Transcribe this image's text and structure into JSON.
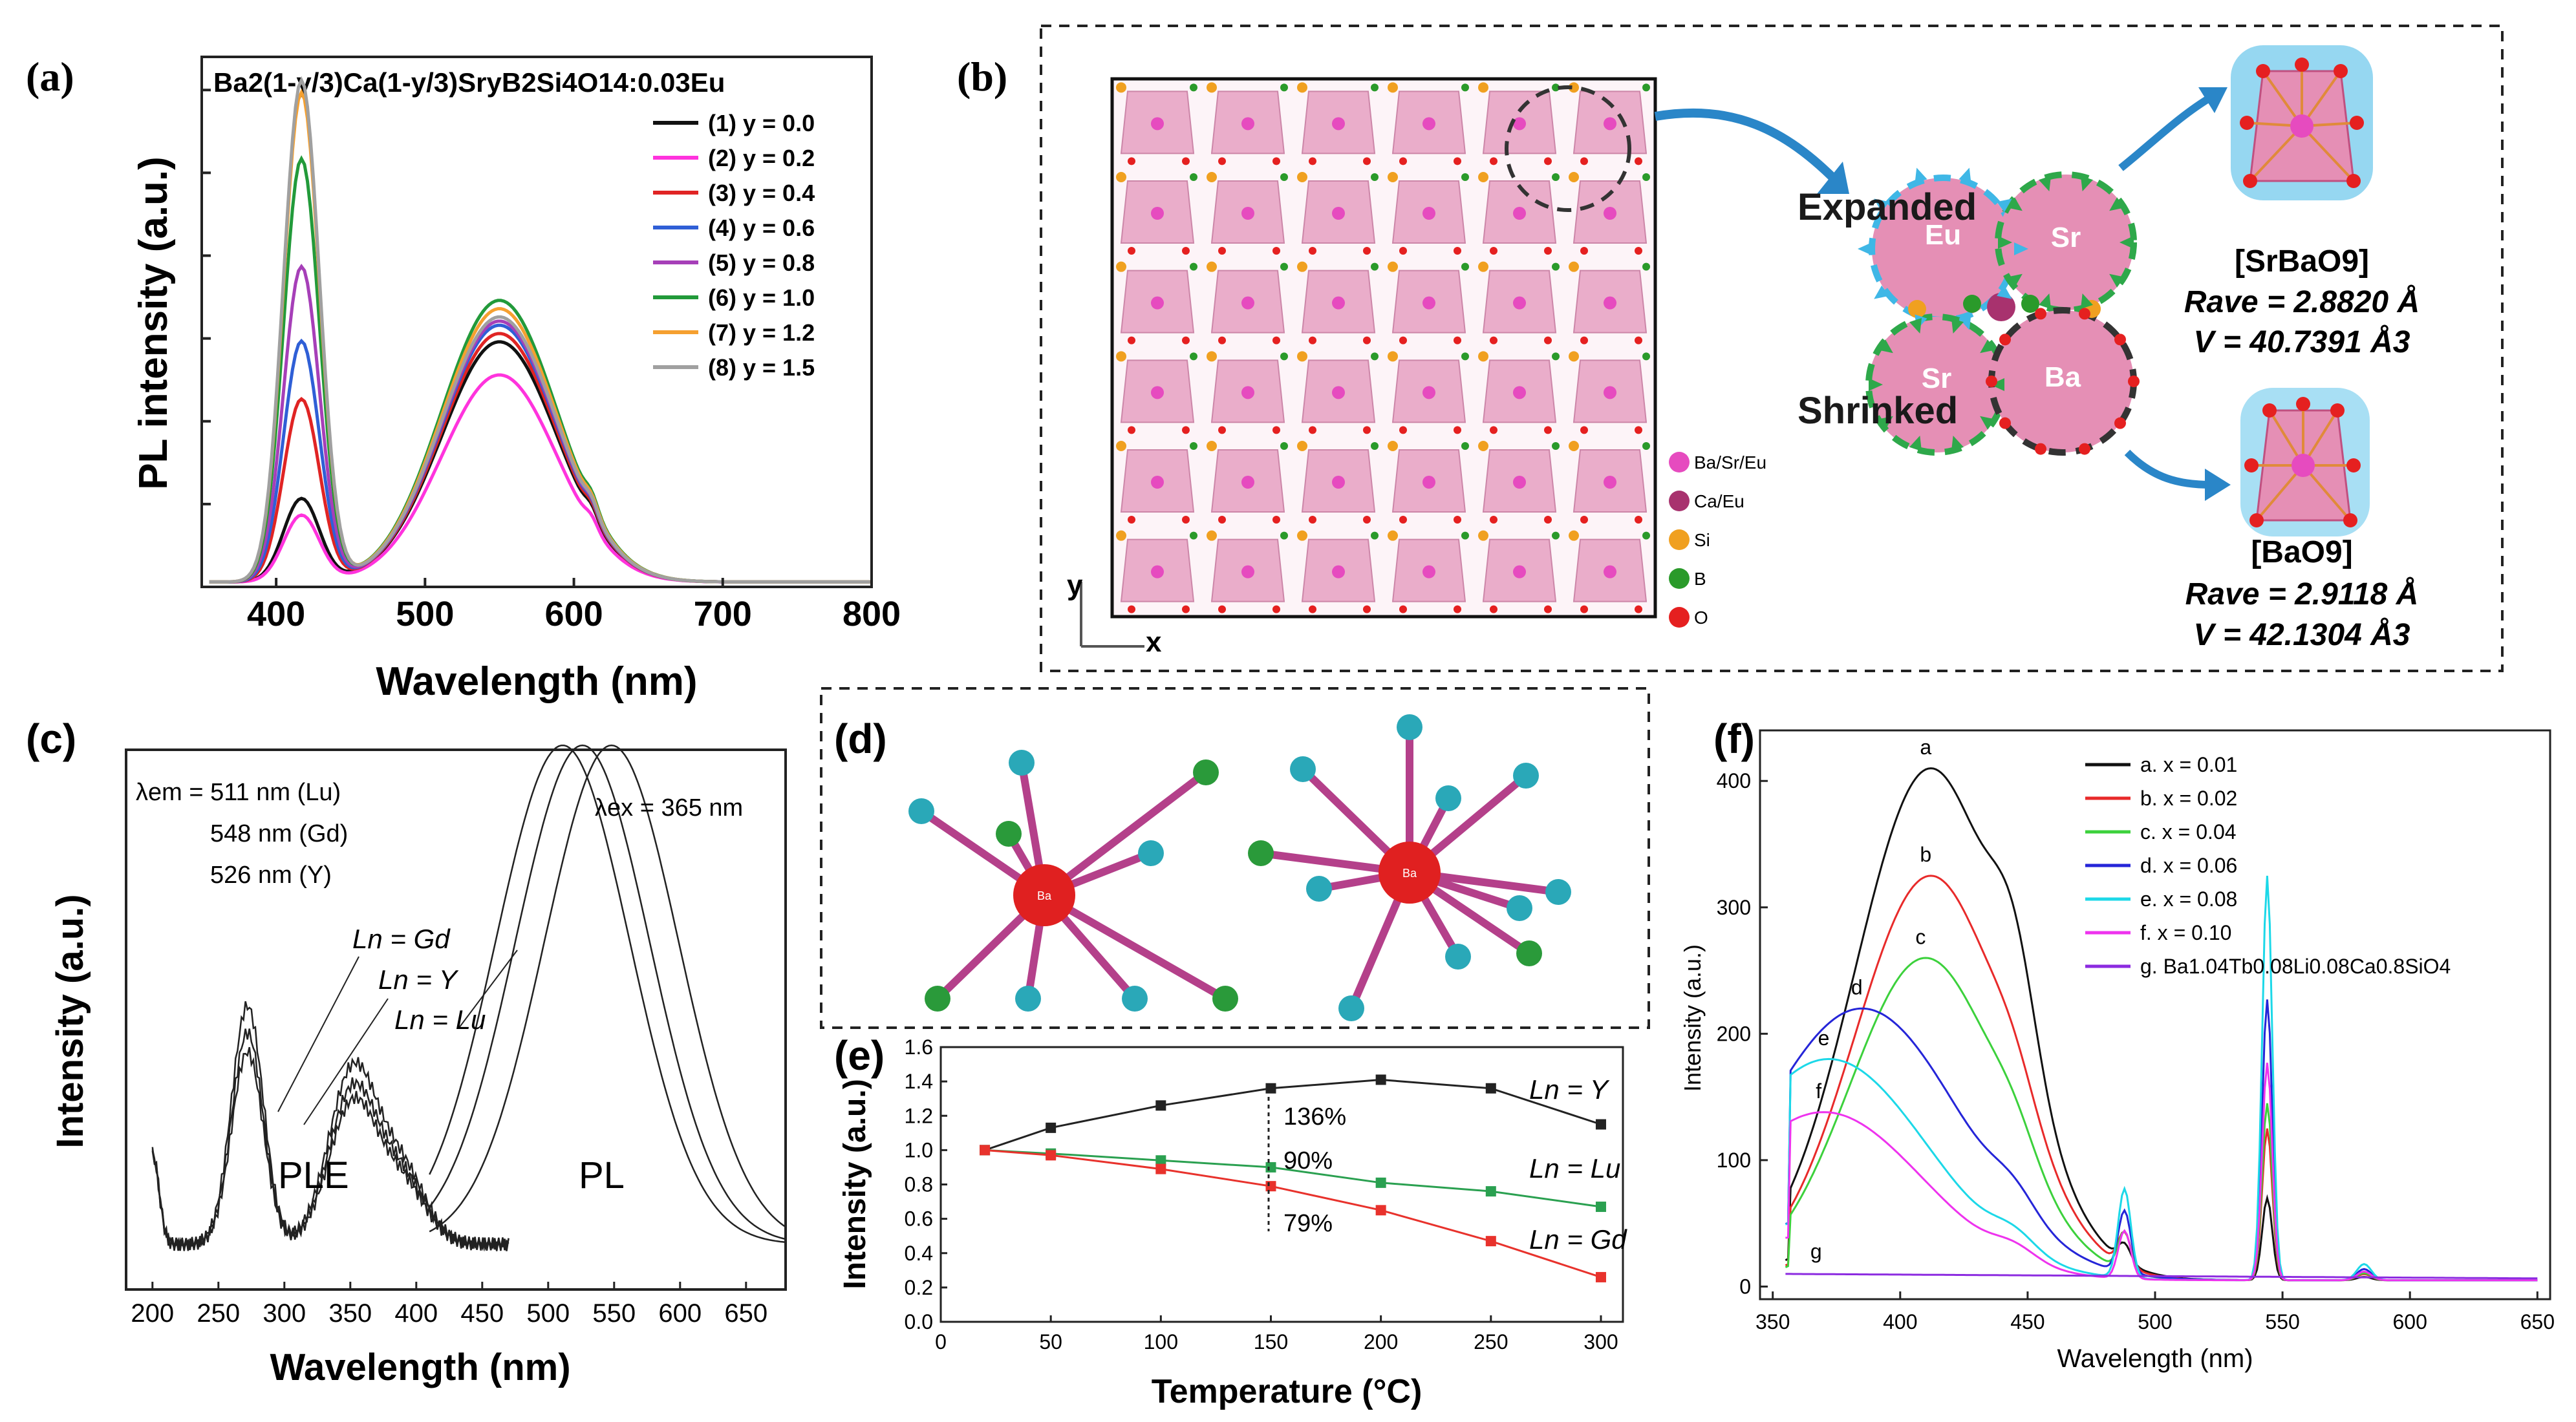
{
  "figure": {
    "panel_labels": [
      "(a)",
      "(b)",
      "(c)",
      "(d)",
      "(e)",
      "(f)"
    ]
  },
  "panel_a": {
    "formula": "Ba2(1-y/3)Ca(1-y/3)SryB2Si4O14:0.03Eu"
  },
  "panel_b": {
    "legend": [
      {
        "label": "Ba/Sr/Eu",
        "color": "#e64bbf"
      },
      {
        "label": "Ca/Eu",
        "color": "#a8326e"
      },
      {
        "label": "Si",
        "color": "#f0a020"
      },
      {
        "label": "B",
        "color": "#2a9a2a"
      },
      {
        "label": "O",
        "color": "#e52020"
      }
    ],
    "axes": {
      "y": "y",
      "x": "x"
    },
    "labels": {
      "expanded": "Expanded",
      "shrinked": "Shrinked",
      "eu": "Eu",
      "sr_top": "Sr",
      "sr_bottom": "Sr",
      "ba": "Ba"
    },
    "polyhedra": [
      {
        "name": "[SrBaO9]",
        "r_ave": "Rave = 2.8820 Å",
        "volume": "V = 40.7391 Å3"
      },
      {
        "name": "[BaO9]",
        "r_ave": "Rave = 2.9118 Å",
        "volume": "V = 42.1304 Å3"
      }
    ]
  },
  "panel_d": {
    "center_label": "Ba"
  },
  "chart_data": [
    {
      "panel": "(a)",
      "type": "line",
      "title": "Ba2(1-y/3)Ca(1-y/3)SryB2Si4O14:0.03Eu",
      "xlabel": "Wavelength (nm)",
      "ylabel": "PL intensity (a.u.)",
      "xlim": [
        350,
        800
      ],
      "ylim": [
        0,
        6.4
      ],
      "xticks": [
        400,
        500,
        600,
        700,
        800
      ],
      "legend_position": "top-right",
      "series": [
        {
          "name": "(1) y = 0.0",
          "color": "#111111",
          "peak1": 1.0,
          "peak2": 2.9
        },
        {
          "name": "(2) y = 0.2",
          "color": "#ff33dd",
          "peak1": 0.8,
          "peak2": 2.5
        },
        {
          "name": "(3) y = 0.4",
          "color": "#e02424",
          "peak1": 2.2,
          "peak2": 3.0
        },
        {
          "name": "(4) y = 0.6",
          "color": "#2f5fd6",
          "peak1": 2.9,
          "peak2": 3.1
        },
        {
          "name": "(5) y = 0.8",
          "color": "#a63fb8",
          "peak1": 3.8,
          "peak2": 3.15
        },
        {
          "name": "(6) y = 1.0",
          "color": "#229a3a",
          "peak1": 5.1,
          "peak2": 3.4
        },
        {
          "name": "(7) y = 1.2",
          "color": "#f5a030",
          "peak1": 5.9,
          "peak2": 3.3
        },
        {
          "name": "(8) y = 1.5",
          "color": "#a0a0a0",
          "peak1": 6.05,
          "peak2": 3.2
        }
      ]
    },
    {
      "panel": "(c)",
      "type": "line",
      "xlabel": "Wavelength (nm)",
      "ylabel": "Intensity (a.u.)",
      "xlim": [
        180,
        680
      ],
      "xticks": [
        200,
        250,
        300,
        350,
        400,
        450,
        500,
        550,
        600,
        650
      ],
      "annotations": {
        "lambda_em": "λem = 511 nm (Lu)",
        "em_gd": "548 nm (Gd)",
        "em_y": "526 nm (Y)",
        "lambda_ex": "λex = 365 nm",
        "ln_gd": "Ln = Gd",
        "ln_y": "Ln = Y",
        "ln_lu": "Ln = Lu",
        "ple": "PLE",
        "pl": "PL"
      },
      "series": [
        {
          "name": "Gd",
          "ple_peak": 0.62,
          "pl_peak_nm": 548
        },
        {
          "name": "Y",
          "ple_peak": 0.55,
          "pl_peak_nm": 526
        },
        {
          "name": "Lu",
          "ple_peak": 0.5,
          "pl_peak_nm": 511
        }
      ]
    },
    {
      "panel": "(e)",
      "type": "line",
      "xlabel": "Temperature (°C)",
      "ylabel": "Intensity (a.u.)",
      "xlim": [
        0,
        310
      ],
      "ylim": [
        0.0,
        1.6
      ],
      "xticks": [
        0,
        50,
        100,
        150,
        200,
        250,
        300
      ],
      "yticks": [
        0.0,
        0.2,
        0.4,
        0.6,
        0.8,
        1.0,
        1.2,
        1.4,
        1.6
      ],
      "x": [
        20,
        50,
        100,
        150,
        200,
        250,
        300
      ],
      "series": [
        {
          "name": "Ln = Y",
          "color": "#222222",
          "values": [
            1.0,
            1.13,
            1.26,
            1.36,
            1.41,
            1.36,
            1.15
          ]
        },
        {
          "name": "Ln = Lu",
          "color": "#2aa050",
          "values": [
            1.0,
            0.98,
            0.94,
            0.9,
            0.81,
            0.76,
            0.67
          ]
        },
        {
          "name": "Ln = Gd",
          "color": "#e8322c",
          "values": [
            1.0,
            0.97,
            0.89,
            0.79,
            0.65,
            0.47,
            0.26
          ]
        }
      ],
      "annotations": [
        "136%",
        "90%",
        "79%"
      ]
    },
    {
      "panel": "(f)",
      "type": "line",
      "xlabel": "Wavelength (nm)",
      "ylabel": "Intensity (a.u.)",
      "xlim": [
        345,
        655
      ],
      "ylim": [
        -10,
        440
      ],
      "xticks": [
        350,
        400,
        450,
        500,
        550,
        600,
        650
      ],
      "yticks": [
        0,
        100,
        200,
        300,
        400
      ],
      "legend_position": "top-right",
      "series": [
        {
          "name": "a. x = 0.01",
          "letter": "a",
          "color": "#111111",
          "broad": 405,
          "center": 412,
          "line545": 65
        },
        {
          "name": "b. x = 0.02",
          "letter": "b",
          "color": "#e82a2a",
          "broad": 320,
          "center": 412,
          "line545": 120
        },
        {
          "name": "c. x = 0.04",
          "letter": "c",
          "color": "#3cd13c",
          "broad": 255,
          "center": 410,
          "line545": 140
        },
        {
          "name": "d. x = 0.06",
          "letter": "d",
          "color": "#2525d8",
          "broad": 215,
          "center": 385,
          "line545": 222
        },
        {
          "name": "e. x = 0.08",
          "letter": "e",
          "color": "#1cd8e8",
          "broad": 175,
          "center": 372,
          "line545": 320
        },
        {
          "name": "f. x = 0.10",
          "letter": "f",
          "color": "#ee33ee",
          "broad": 133,
          "center": 370,
          "line545": 172
        },
        {
          "name": "g. Ba1.04Tb0.08Li0.08Ca0.8SiO4",
          "letter": "g",
          "color": "#8c2be0",
          "broad": 10,
          "center": 360,
          "line545": 0
        }
      ]
    }
  ]
}
